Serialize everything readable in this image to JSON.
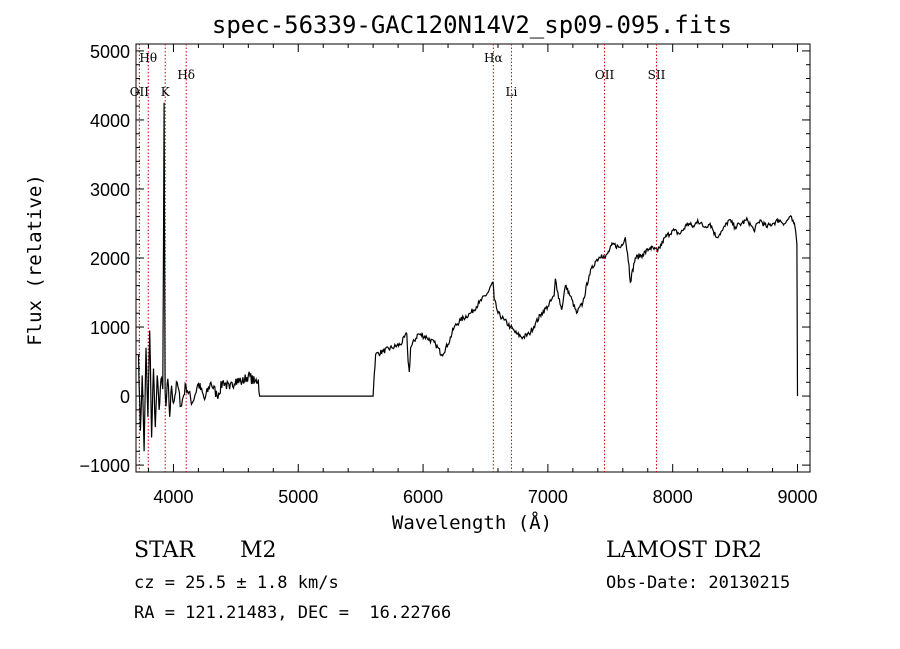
{
  "chart_data": {
    "type": "line",
    "title": "spec-56339-GAC120N14V2_sp09-095.fits",
    "xlabel": "Wavelength (Å)",
    "ylabel": "Flux (relative)",
    "xlim": [
      3700,
      9100
    ],
    "ylim": [
      -1100,
      5100
    ],
    "xticks": [
      4000,
      5000,
      6000,
      7000,
      8000,
      9000
    ],
    "yticks": [
      -1000,
      0,
      1000,
      2000,
      3000,
      4000,
      5000
    ],
    "xtick_labels": [
      "4000",
      "5000",
      "6000",
      "7000",
      "8000",
      "9000"
    ],
    "ytick_labels": [
      "−1000",
      "0",
      "1000",
      "2000",
      "3000",
      "4000",
      "5000"
    ],
    "grid": false,
    "line_color": "#000000",
    "marker_color": "#cc0000",
    "line_markers": [
      {
        "label": "Hθ",
        "x": 3798,
        "row": 1
      },
      {
        "label": "OII",
        "x": 3727,
        "row": 3
      },
      {
        "label": "K",
        "x": 3934,
        "row": 3
      },
      {
        "label": "Hδ",
        "x": 4102,
        "row": 2
      },
      {
        "label": "Hα",
        "x": 6563,
        "row": 1
      },
      {
        "label": "Li",
        "x": 6708,
        "row": 3
      },
      {
        "label": "OII",
        "x": 7454,
        "row": 2
      },
      {
        "label": "SII",
        "x": 7870,
        "row": 2
      }
    ],
    "spectrum": {
      "x": [
        3720,
        3735,
        3750,
        3765,
        3780,
        3795,
        3810,
        3825,
        3840,
        3855,
        3870,
        3885,
        3900,
        3915,
        3925,
        3933,
        3940,
        3955,
        3970,
        3985,
        4000,
        4030,
        4060,
        4100,
        4150,
        4200,
        4250,
        4300,
        4350,
        4400,
        4450,
        4500,
        4550,
        4600,
        4650,
        4680,
        4690,
        5600,
        5605,
        5620,
        5680,
        5750,
        5820,
        5870,
        5880,
        5890,
        5900,
        5960,
        6030,
        6100,
        6150,
        6200,
        6250,
        6300,
        6380,
        6450,
        6520,
        6560,
        6570,
        6600,
        6650,
        6700,
        6750,
        6800,
        6850,
        6900,
        6950,
        7000,
        7050,
        7060,
        7080,
        7110,
        7140,
        7180,
        7230,
        7280,
        7330,
        7380,
        7430,
        7460,
        7520,
        7580,
        7620,
        7650,
        7660,
        7700,
        7760,
        7820,
        7880,
        7940,
        8000,
        8060,
        8120,
        8170,
        8200,
        8250,
        8300,
        8350,
        8400,
        8450,
        8500,
        8550,
        8600,
        8650,
        8700,
        8750,
        8800,
        8850,
        8900,
        8940,
        8970,
        8985,
        8995,
        9000
      ],
      "y": [
        600,
        -500,
        300,
        -800,
        700,
        -300,
        950,
        -600,
        400,
        -450,
        300,
        -200,
        250,
        100,
        4250,
        60,
        -150,
        250,
        -300,
        150,
        -100,
        200,
        -150,
        160,
        -100,
        180,
        -50,
        200,
        0,
        220,
        100,
        250,
        200,
        300,
        200,
        240,
        0,
        0,
        200,
        600,
        650,
        700,
        750,
        900,
        500,
        350,
        700,
        900,
        850,
        750,
        600,
        750,
        1000,
        1100,
        1200,
        1350,
        1500,
        1650,
        1400,
        1200,
        1100,
        1000,
        900,
        850,
        900,
        1050,
        1200,
        1300,
        1450,
        1700,
        1500,
        1250,
        1600,
        1450,
        1200,
        1350,
        1750,
        1950,
        2050,
        2000,
        2200,
        2150,
        2300,
        1900,
        1650,
        2000,
        2050,
        2150,
        2100,
        2300,
        2400,
        2350,
        2500,
        2450,
        2550,
        2450,
        2500,
        2300,
        2400,
        2550,
        2450,
        2500,
        2550,
        2400,
        2550,
        2450,
        2500,
        2550,
        2500,
        2600,
        2500,
        2400,
        2200,
        0
      ]
    }
  },
  "info": {
    "object_class": "STAR",
    "subclass": "M2",
    "survey": "LAMOST DR2",
    "redshift_line": "cz = 25.5 ± 1.8 km/s",
    "obs_date": "Obs-Date: 20130215",
    "coords": "RA = 121.21483, DEC =  16.22766"
  }
}
